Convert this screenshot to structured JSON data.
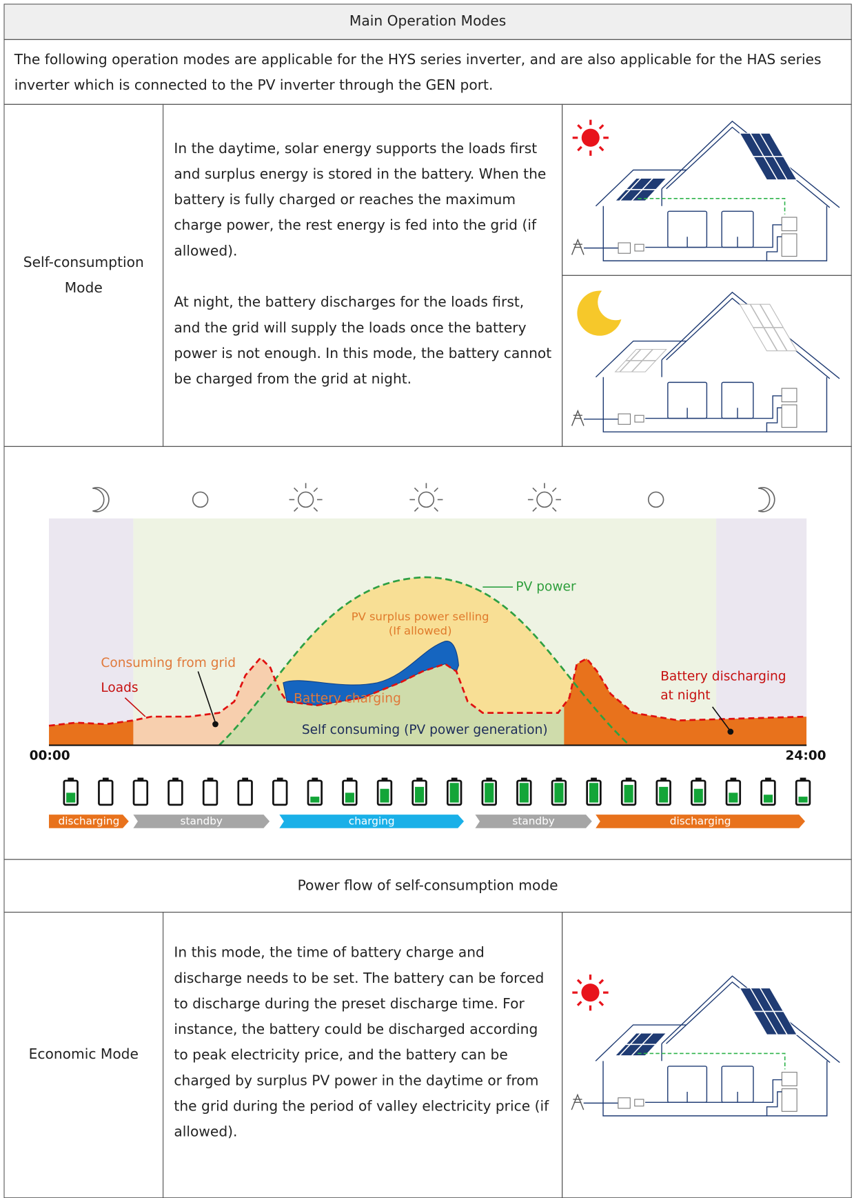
{
  "header": {
    "title": "Main Operation Modes",
    "intro": "The following operation modes are applicable for the HYS series inverter, and are also applicable for the HAS series inverter which is connected to the PV inverter through the GEN port."
  },
  "self_consumption": {
    "mode": "Self-consumption Mode",
    "day_text": "In the daytime, solar energy supports the loads first and surplus energy is stored in the battery. When the battery is fully charged or reaches the maximum charge power, the rest energy is fed into the grid (if allowed).",
    "night_text": "At night, the battery discharges for the loads first, and the grid will supply the loads once the battery power is not enough. In this mode, the battery cannot be charged from the grid at night."
  },
  "diagram": {
    "pv_power": "PV power",
    "pv_surplus": [
      "PV surplus power selling",
      "(If allowed)"
    ],
    "consuming_from_grid": "Consuming from grid",
    "loads": "Loads",
    "battery_charging": "Battery charging",
    "battery_discharging": [
      "Battery discharging",
      "at night"
    ],
    "self_consuming": "Self consuming (PV power generation)",
    "time_start": "00:00",
    "time_end": "24:00",
    "states": [
      "discharging",
      "standby",
      "charging",
      "standby",
      "discharging"
    ]
  },
  "caption": "Power flow of self-consumption mode",
  "economic": {
    "mode": "Economic Mode",
    "text": "In this mode, the time of battery charge and discharge needs to be set. The battery can be forced to discharge during the preset discharge time. For instance, the battery could be discharged according to peak electricity price, and the battery can be charged by surplus PV power in the daytime or from the grid during the period of valley electricity price (if allowed)."
  }
}
